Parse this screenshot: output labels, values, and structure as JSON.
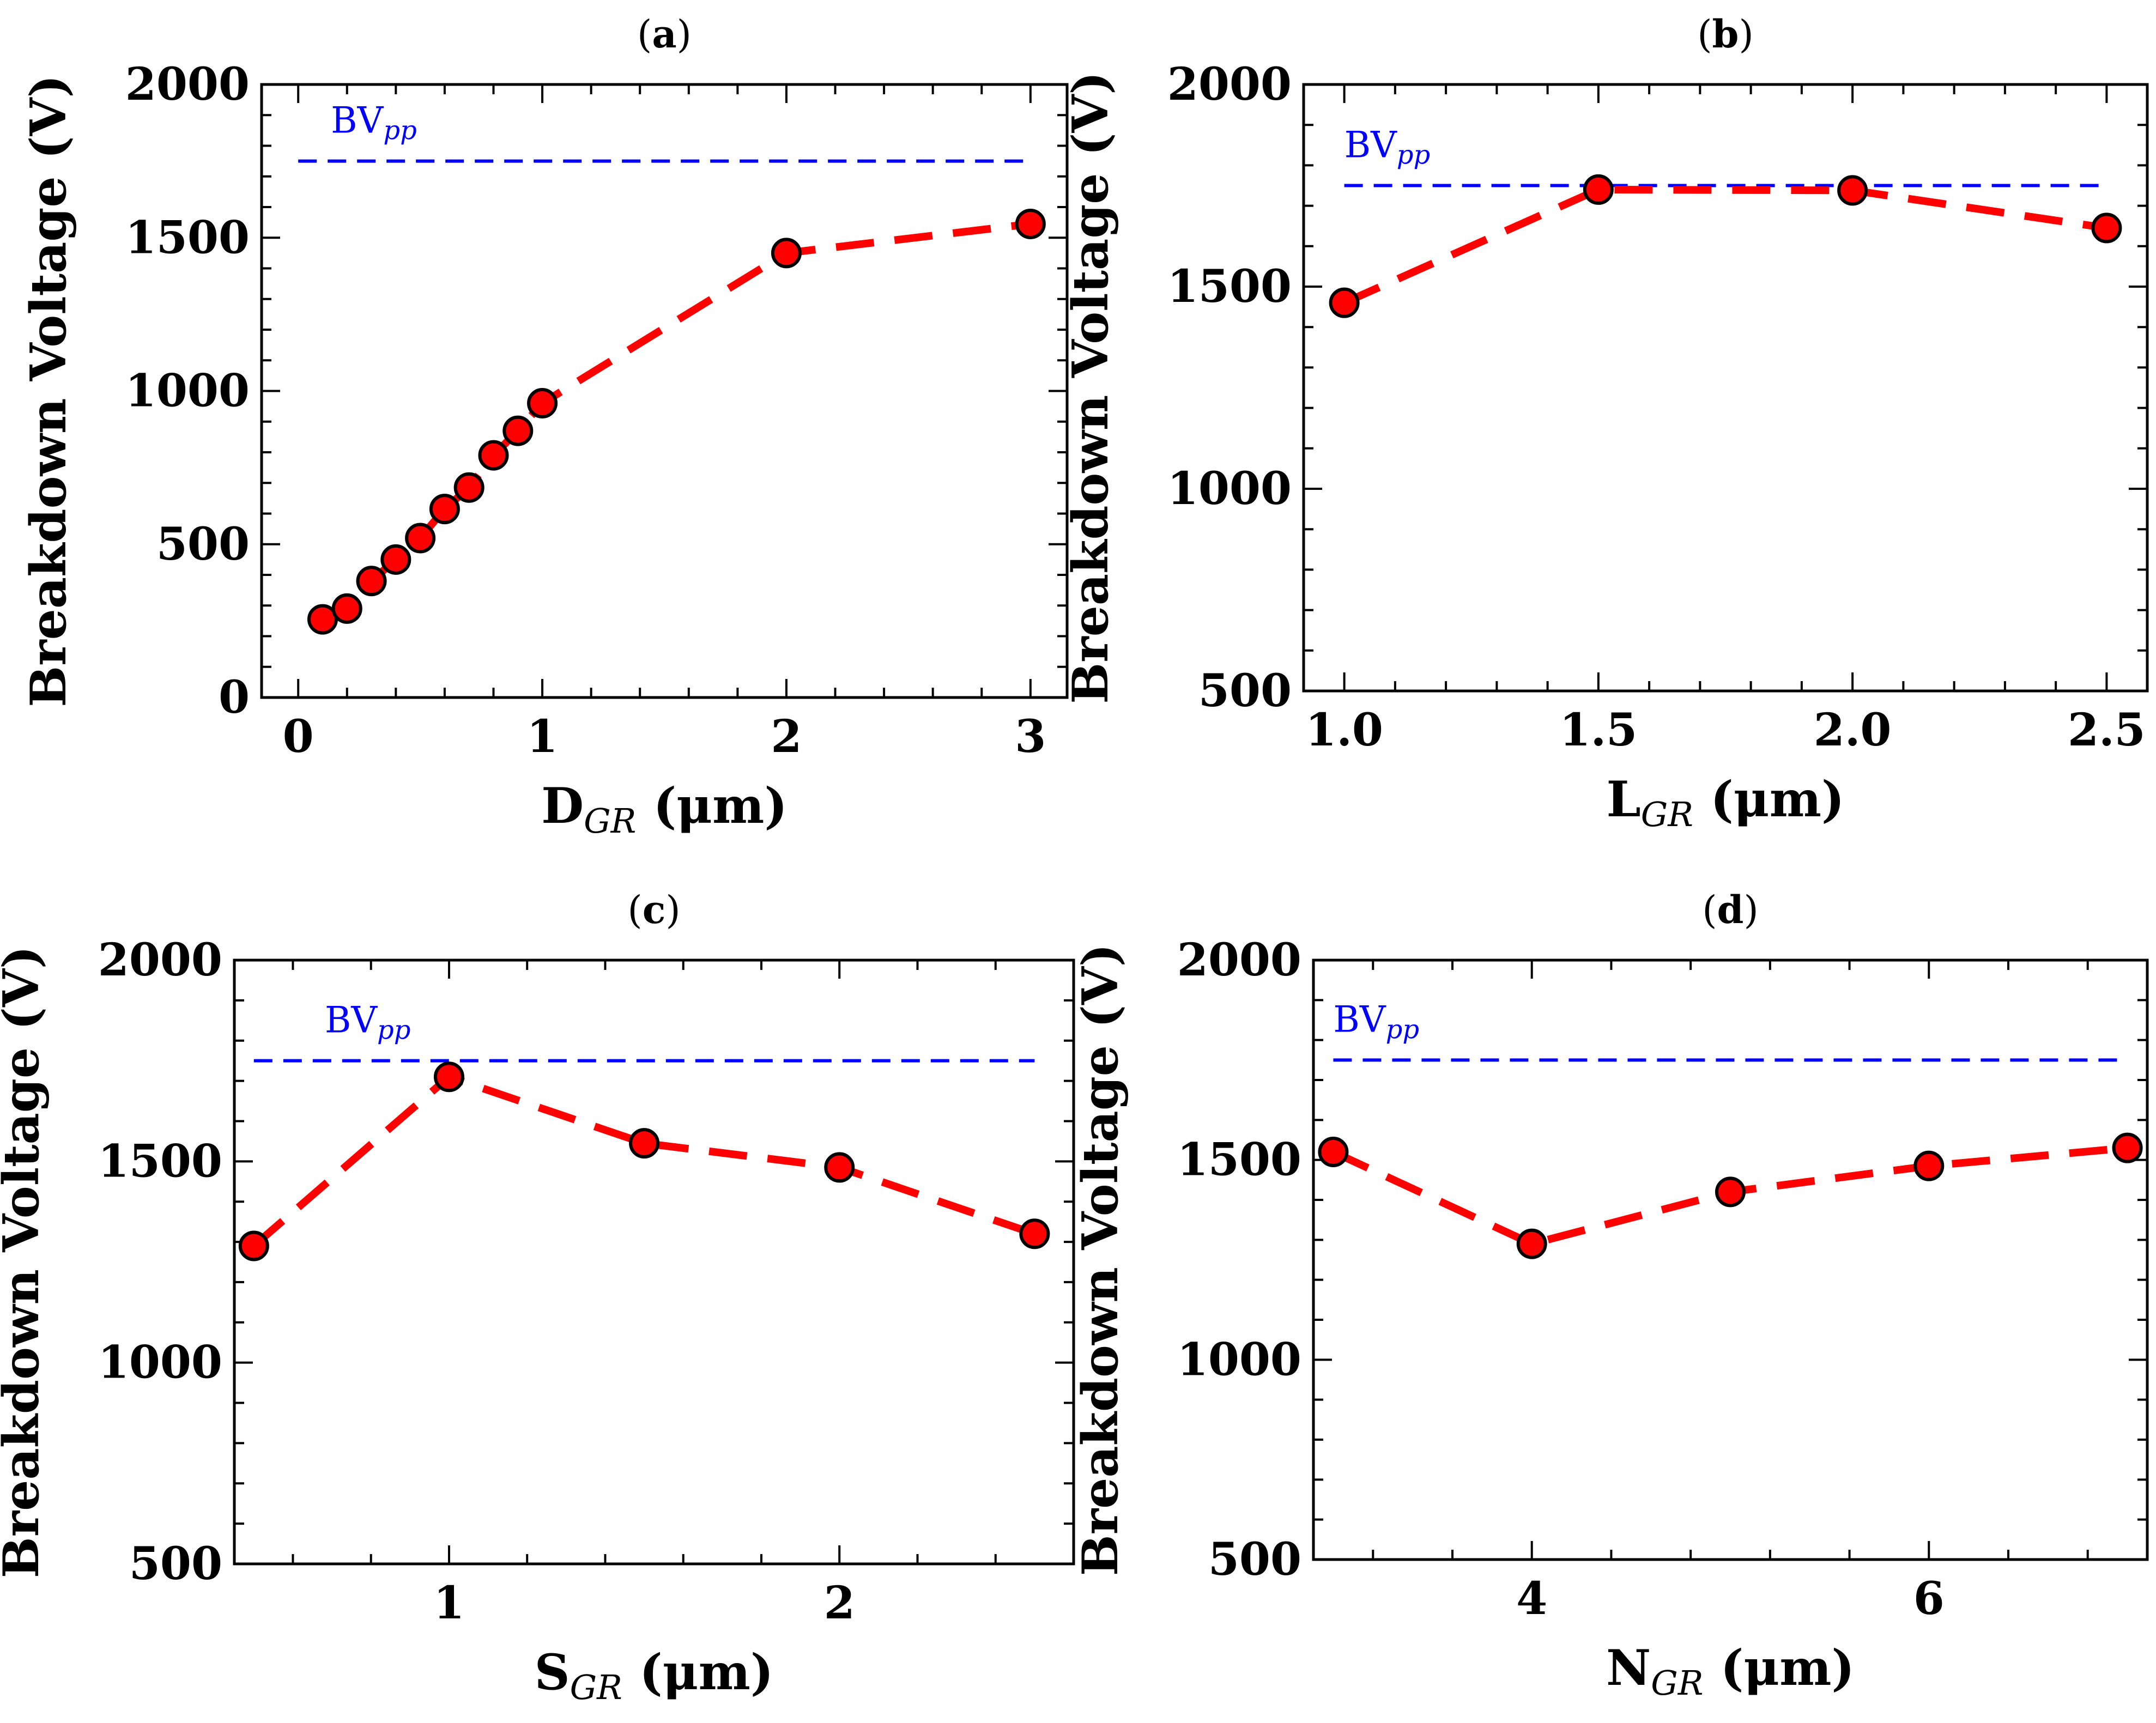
{
  "chart_data": [
    {
      "type": "line",
      "panel_label": "a",
      "xlabel_main": "D",
      "xlabel_sub": "GR",
      "xlabel_unit": "(μm)",
      "ylabel": "Breakdown Voltage (V)",
      "xlim": [
        -0.15,
        3.15
      ],
      "ylim": [
        0,
        2000
      ],
      "xticks": [
        0,
        1,
        2,
        3
      ],
      "xtick_labels": [
        "0",
        "1",
        "2",
        "3"
      ],
      "yticks": [
        0,
        500,
        1000,
        1500,
        2000
      ],
      "ytick_labels": [
        "0",
        "500",
        "1000",
        "1500",
        "2000"
      ],
      "x": [
        0.1,
        0.2,
        0.3,
        0.4,
        0.5,
        0.6,
        0.7,
        0.8,
        0.9,
        1.0,
        2.0,
        3.0
      ],
      "values": [
        255,
        290,
        380,
        450,
        520,
        615,
        685,
        790,
        870,
        960,
        1450,
        1545
      ],
      "reference": {
        "name": "BV",
        "sub": "pp",
        "value": 1750,
        "x_start": 0,
        "x_end": 3
      },
      "series_color": "#ff0000",
      "reference_color": "#0000ff"
    },
    {
      "type": "line",
      "panel_label": "b",
      "xlabel_main": "L",
      "xlabel_sub": "GR",
      "xlabel_unit": "(μm)",
      "ylabel": "Breakdown Voltage (V)",
      "xlim": [
        0.92,
        2.58
      ],
      "ylim": [
        500,
        2000
      ],
      "xticks": [
        1.0,
        1.5,
        2.0,
        2.5
      ],
      "xtick_labels": [
        "1.0",
        "1.5",
        "2.0",
        "2.5"
      ],
      "yticks": [
        500,
        1000,
        1500,
        2000
      ],
      "ytick_labels": [
        "500",
        "1000",
        "1500",
        "2000"
      ],
      "x": [
        1.0,
        1.5,
        2.0,
        2.5
      ],
      "values": [
        1460,
        1740,
        1738,
        1645
      ],
      "reference": {
        "name": "BV",
        "sub": "pp",
        "value": 1750,
        "x_start": 1.0,
        "x_end": 2.5
      },
      "series_color": "#ff0000",
      "reference_color": "#0000ff"
    },
    {
      "type": "line",
      "panel_label": "c",
      "xlabel_main": "S",
      "xlabel_sub": "GR",
      "xlabel_unit": "(μm)",
      "ylabel": "Breakdown Voltage (V)",
      "xlim": [
        0.45,
        2.6
      ],
      "ylim": [
        500,
        2000
      ],
      "xticks": [
        1,
        2
      ],
      "xtick_labels": [
        "1",
        "2"
      ],
      "yticks": [
        500,
        1000,
        1500,
        2000
      ],
      "ytick_labels": [
        "500",
        "1000",
        "1500",
        "2000"
      ],
      "x": [
        0.5,
        1.0,
        1.5,
        2.0,
        2.5
      ],
      "values": [
        1290,
        1710,
        1545,
        1485,
        1320
      ],
      "reference": {
        "name": "BV",
        "sub": "pp",
        "value": 1750,
        "x_start": 0.5,
        "x_end": 2.5
      },
      "series_color": "#ff0000",
      "reference_color": "#0000ff"
    },
    {
      "type": "line",
      "panel_label": "d",
      "xlabel_main": "N",
      "xlabel_sub": "GR",
      "xlabel_unit": "(μm)",
      "ylabel": "Breakdown Voltage (V)",
      "xlim": [
        2.9,
        7.1
      ],
      "ylim": [
        500,
        2000
      ],
      "xticks": [
        4,
        6
      ],
      "xtick_labels": [
        "4",
        "6"
      ],
      "yticks": [
        500,
        1000,
        1500,
        2000
      ],
      "ytick_labels": [
        "500",
        "1000",
        "1500",
        "2000"
      ],
      "x": [
        3,
        4,
        5,
        6,
        7
      ],
      "values": [
        1520,
        1290,
        1420,
        1485,
        1530
      ],
      "reference": {
        "name": "BV",
        "sub": "pp",
        "value": 1750,
        "x_start": 3,
        "x_end": 7
      },
      "series_color": "#ff0000",
      "reference_color": "#0000ff"
    }
  ]
}
